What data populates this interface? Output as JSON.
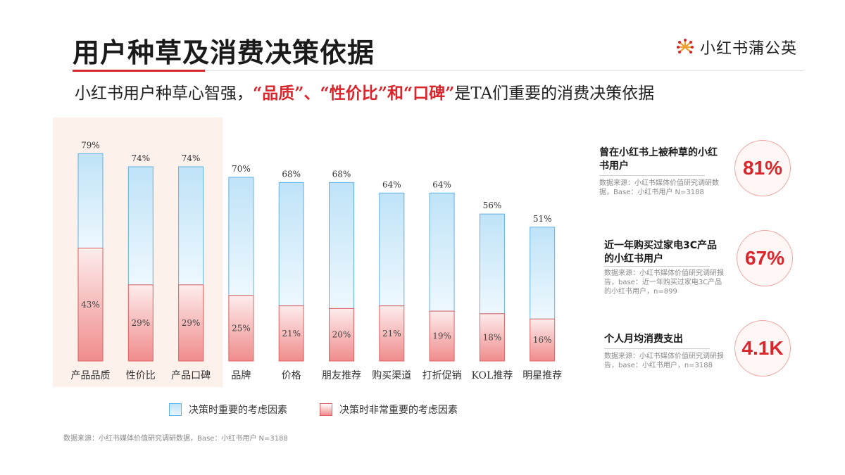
{
  "header": {
    "title": "用户种草及消费决策依据",
    "logo_text": "小红书蒲公英",
    "subtitle_parts": [
      "小红书用户种草心智强，",
      "“品质”、“性价比”和“口碑”",
      "是TA们重要的消费决策依据"
    ]
  },
  "chart_data": {
    "type": "bar",
    "stacked": true,
    "categories": [
      "产品品质",
      "性价比",
      "产品口碑",
      "品牌",
      "价格",
      "朋友推荐",
      "购买渠道",
      "打折促销",
      "KOL推荐",
      "明星推荐"
    ],
    "totals": [
      "79%",
      "74%",
      "74%",
      "70%",
      "68%",
      "68%",
      "64%",
      "64%",
      "56%",
      "51%"
    ],
    "total_values": [
      79,
      74,
      74,
      70,
      68,
      68,
      64,
      64,
      56,
      51
    ],
    "series": [
      {
        "name": "决策时非常重要的考虑因素",
        "values": [
          43,
          29,
          29,
          25,
          21,
          20,
          21,
          19,
          18,
          16
        ],
        "labels": [
          "43%",
          "29%",
          "29%",
          "25%",
          "21%",
          "20%",
          "21%",
          "19%",
          "18%",
          "16%"
        ],
        "color": "#f08c8c"
      },
      {
        "name": "决策时重要的考虑因素",
        "values": [
          36,
          45,
          45,
          45,
          47,
          48,
          43,
          45,
          38,
          35
        ],
        "color": "#bfe3f8"
      }
    ],
    "highlighted_categories": [
      "产品品质",
      "性价比",
      "产品口碑"
    ],
    "highlight_color": "#fdf1ec",
    "ylim": [
      0,
      100
    ],
    "grid": false
  },
  "legend": {
    "important": "决策时重要的考虑因素",
    "very_important": "决策时非常重要的考虑因素"
  },
  "footnote": "数据来源：小红书媒体价值研究调研数据，Base：小红书用户 N=3188",
  "stats": [
    {
      "title": "曾在小红书上被种草的小红书用户",
      "source": "数据来源：小红书媒体价值研究调研数据，Base：小红书用户 N=3188",
      "value": "81%"
    },
    {
      "title": "近一年购买过家电3C产品的小红书用户",
      "source": "数据来源：小红书媒体价值研究调研报告，base：近一年购买过家电3C产品的小红书用户，n=899",
      "value": "67%"
    },
    {
      "title": "个人月均消费支出",
      "source": "数据来源：小红书媒体价值研究调研报告，base：小红书用户，n=3188",
      "value": "4.1K"
    }
  ],
  "colors": {
    "accent": "#d9262c",
    "blue": "#62b1e5",
    "red": "#e06060"
  }
}
